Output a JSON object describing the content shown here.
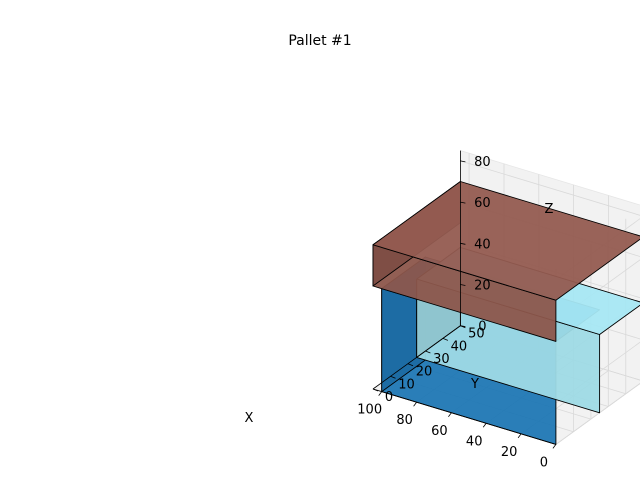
{
  "chart_data": {
    "type": "3d-bar",
    "title": "Pallet #1",
    "xlabel": "X",
    "ylabel": "Y",
    "zlabel": "Z",
    "xlim": [
      0,
      105
    ],
    "ylim": [
      0,
      50
    ],
    "zlim": [
      0,
      85
    ],
    "xticks": [
      "0",
      "20",
      "40",
      "60",
      "80",
      "100"
    ],
    "yticks": [
      "0",
      "10",
      "20",
      "30",
      "40",
      "50"
    ],
    "zticks": [
      "0",
      "20",
      "40",
      "60",
      "80"
    ],
    "grid": true,
    "boxes": [
      {
        "color": "#1f77b4",
        "x": [
          0,
          100
        ],
        "y": [
          0,
          25
        ],
        "z": [
          0,
          50
        ]
      },
      {
        "color": "#9edae5",
        "x": [
          0,
          105
        ],
        "y": [
          25,
          50
        ],
        "z": [
          0,
          38
        ]
      },
      {
        "color": "#8c564b",
        "x": [
          0,
          105
        ],
        "y": [
          0,
          50
        ],
        "z": [
          50,
          70
        ]
      }
    ]
  }
}
